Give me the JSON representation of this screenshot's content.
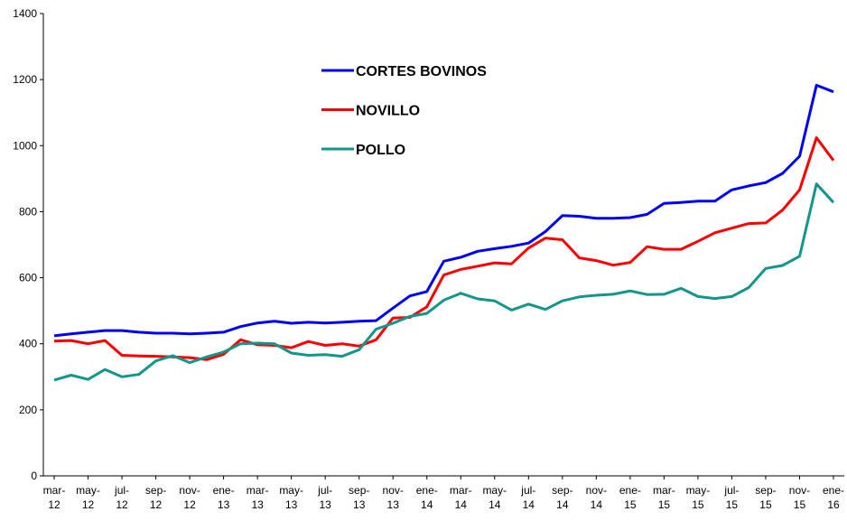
{
  "chart_data": {
    "type": "line",
    "categories": [
      "mar-12",
      null,
      "may-12",
      null,
      "jul-12",
      null,
      "sep-12",
      null,
      "nov-12",
      null,
      "ene-13",
      null,
      "mar-13",
      null,
      "may-13",
      null,
      "jul-13",
      null,
      "sep-13",
      null,
      "nov-13",
      null,
      "ene-14",
      null,
      "mar-14",
      null,
      "may-14",
      null,
      "jul-14",
      null,
      "sep-14",
      null,
      "nov-14",
      null,
      "ene-15",
      null,
      "mar-15",
      null,
      "may-15",
      null,
      "jul-15",
      null,
      "sep-15",
      null,
      "nov-15",
      null,
      "ene-16"
    ],
    "series": [
      {
        "name": "CORTES BOVINOS",
        "color": "#0000ff",
        "values": [
          424,
          430,
          435,
          440,
          440,
          435,
          432,
          432,
          430,
          432,
          435,
          452,
          463,
          468,
          462,
          465,
          463,
          465,
          468,
          470,
          508,
          545,
          558,
          650,
          662,
          680,
          688,
          695,
          705,
          740,
          788,
          786,
          780,
          780,
          782,
          792,
          825,
          828,
          832,
          832,
          866,
          878,
          888,
          916,
          968,
          1183,
          1163
        ]
      },
      {
        "name": "NOVILLO",
        "color": "#ff0000",
        "values": [
          408,
          410,
          400,
          410,
          365,
          363,
          362,
          360,
          358,
          352,
          368,
          412,
          397,
          395,
          388,
          407,
          395,
          400,
          393,
          412,
          478,
          480,
          512,
          608,
          625,
          635,
          645,
          642,
          690,
          720,
          715,
          660,
          652,
          638,
          646,
          694,
          686,
          686,
          710,
          736,
          750,
          764,
          766,
          805,
          866,
          1024,
          955
        ]
      },
      {
        "name": "POLLO",
        "color": "#12968c",
        "values": [
          290,
          305,
          292,
          322,
          300,
          307,
          348,
          364,
          343,
          360,
          375,
          400,
          402,
          400,
          372,
          365,
          367,
          362,
          382,
          444,
          462,
          483,
          492,
          532,
          553,
          536,
          530,
          502,
          520,
          504,
          530,
          542,
          547,
          550,
          560,
          549,
          550,
          568,
          543,
          537,
          543,
          570,
          628,
          637,
          665,
          884,
          828
        ]
      }
    ],
    "ylim": [
      0,
      1400
    ],
    "yticks": [
      0,
      200,
      400,
      600,
      800,
      1000,
      1200,
      1400
    ],
    "grid": false
  }
}
